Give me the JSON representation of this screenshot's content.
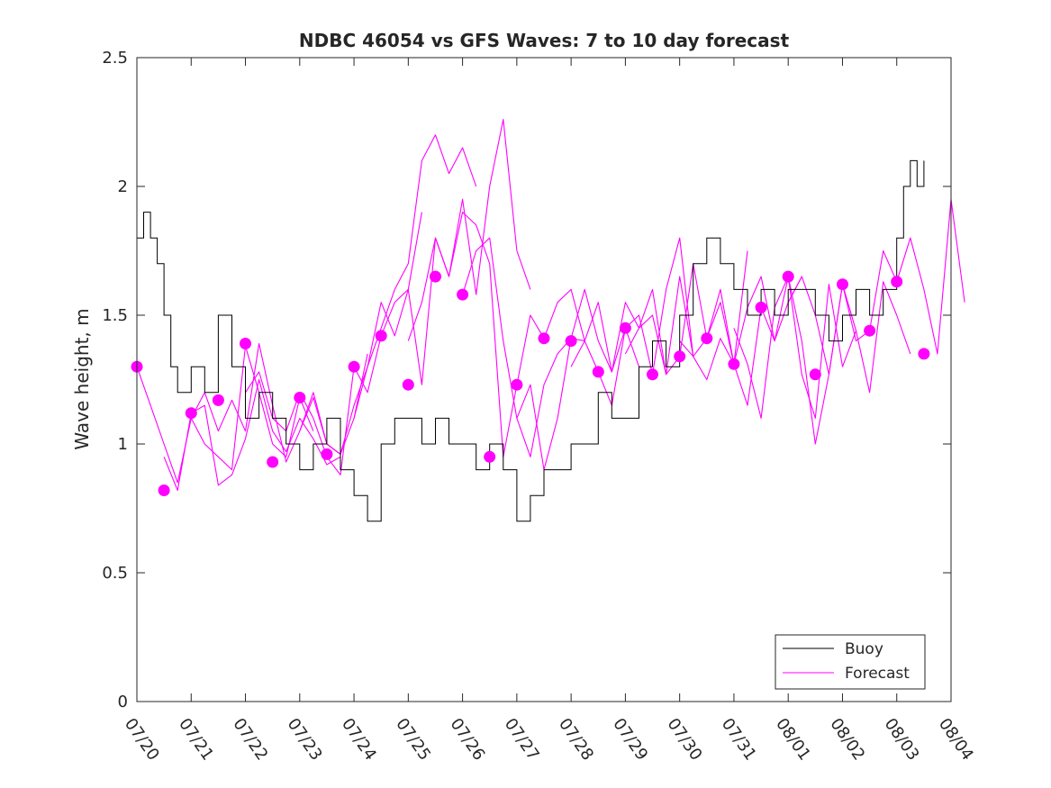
{
  "chart_data": {
    "type": "line",
    "title": "NDBC 46054 vs GFS Waves: 7 to 10 day forecast",
    "xlabel": "",
    "ylabel": "Wave height, m",
    "xlim": [
      "07/20",
      "08/04"
    ],
    "ylim": [
      0,
      2.5
    ],
    "x_ticks": [
      "07/20",
      "07/21",
      "07/22",
      "07/23",
      "07/24",
      "07/25",
      "07/26",
      "07/27",
      "07/28",
      "07/29",
      "07/30",
      "07/31",
      "08/01",
      "08/02",
      "08/03",
      "08/04"
    ],
    "y_ticks": [
      "0",
      "0.5",
      "1",
      "1.5",
      "2",
      "2.5"
    ],
    "legend": {
      "position": "bottom-right",
      "entries": [
        {
          "label": "Buoy",
          "color": "#000000"
        },
        {
          "label": "Forecast",
          "color": "#ff00ff"
        }
      ]
    },
    "colors": {
      "buoy": "#000000",
      "forecast": "#ff00ff",
      "axes": "#262626"
    },
    "series": [
      {
        "name": "Buoy",
        "x": [
          "07/20 00:00",
          "07/20 03:00",
          "07/20 06:00",
          "07/20 09:00",
          "07/20 12:00",
          "07/20 15:00",
          "07/20 18:00",
          "07/21 00:00",
          "07/21 06:00",
          "07/21 12:00",
          "07/21 18:00",
          "07/22 00:00",
          "07/22 06:00",
          "07/22 12:00",
          "07/22 18:00",
          "07/23 00:00",
          "07/23 06:00",
          "07/23 12:00",
          "07/23 18:00",
          "07/24 00:00",
          "07/24 06:00",
          "07/24 12:00",
          "07/24 18:00",
          "07/25 00:00",
          "07/25 06:00",
          "07/25 12:00",
          "07/25 18:00",
          "07/26 00:00",
          "07/26 06:00",
          "07/26 12:00",
          "07/26 18:00",
          "07/27 00:00",
          "07/27 06:00",
          "07/27 12:00",
          "07/27 18:00",
          "07/28 00:00",
          "07/28 06:00",
          "07/28 12:00",
          "07/28 18:00",
          "07/29 00:00",
          "07/29 06:00",
          "07/29 12:00",
          "07/29 18:00",
          "07/30 00:00",
          "07/30 06:00",
          "07/30 12:00",
          "07/30 18:00",
          "07/31 00:00",
          "07/31 06:00",
          "07/31 12:00",
          "07/31 18:00",
          "08/01 00:00",
          "08/01 06:00",
          "08/01 12:00",
          "08/01 18:00",
          "08/02 00:00",
          "08/02 06:00",
          "08/02 12:00",
          "08/02 18:00",
          "08/03 00:00",
          "08/03 03:00",
          "08/03 06:00",
          "08/03 09:00",
          "08/03 12:00"
        ],
        "values": [
          1.8,
          1.9,
          1.8,
          1.7,
          1.5,
          1.3,
          1.2,
          1.3,
          1.2,
          1.5,
          1.3,
          1.1,
          1.2,
          1.1,
          1.0,
          0.9,
          1.0,
          1.1,
          0.9,
          0.8,
          0.7,
          1.0,
          1.1,
          1.1,
          1.0,
          1.1,
          1.0,
          1.0,
          0.9,
          1.0,
          0.9,
          0.7,
          0.8,
          0.9,
          0.9,
          1.0,
          1.0,
          1.2,
          1.1,
          1.1,
          1.3,
          1.4,
          1.3,
          1.5,
          1.7,
          1.8,
          1.7,
          1.6,
          1.5,
          1.6,
          1.5,
          1.6,
          1.6,
          1.5,
          1.4,
          1.5,
          1.6,
          1.5,
          1.6,
          1.8,
          2.0,
          2.1,
          2.0,
          2.1
        ]
      },
      {
        "name": "Forecast",
        "segments": [
          {
            "x": [
              "07/20 00:00",
              "07/20 06:00",
              "07/20 12:00",
              "07/20 18:00",
              "07/21 00:00",
              "07/21 06:00",
              "07/21 12:00",
              "07/21 18:00",
              "07/22 00:00",
              "07/22 06:00",
              "07/22 12:00",
              "07/22 18:00",
              "07/23 00:00",
              "07/23 06:00"
            ],
            "values": [
              1.3,
              1.15,
              1.0,
              0.85,
              1.1,
              1.0,
              0.95,
              0.9,
              1.38,
              1.2,
              1.0,
              0.95,
              1.18,
              1.05
            ]
          },
          {
            "x": [
              "07/20 12:00",
              "07/20 18:00",
              "07/21 00:00",
              "07/21 06:00",
              "07/21 12:00",
              "07/21 18:00",
              "07/22 00:00",
              "07/22 06:00",
              "07/22 12:00",
              "07/22 18:00",
              "07/23 00:00",
              "07/23 06:00",
              "07/23 12:00",
              "07/23 18:00"
            ],
            "values": [
              0.95,
              0.82,
              1.12,
              1.15,
              0.84,
              0.88,
              1.02,
              1.25,
              1.05,
              0.97,
              1.1,
              1.02,
              0.92,
              0.95
            ]
          },
          {
            "x": [
              "07/21 00:00",
              "07/21 06:00",
              "07/21 12:00",
              "07/21 18:00",
              "07/22 00:00",
              "07/22 06:00",
              "07/22 12:00",
              "07/22 18:00",
              "07/23 00:00",
              "07/23 06:00",
              "07/23 12:00",
              "07/23 18:00",
              "07/24 00:00",
              "07/24 06:00"
            ],
            "values": [
              1.1,
              1.2,
              1.05,
              1.17,
              1.05,
              1.39,
              1.15,
              0.93,
              1.05,
              1.2,
              1.0,
              0.96,
              1.1,
              1.35
            ]
          },
          {
            "x": [
              "07/22 00:00",
              "07/22 06:00",
              "07/22 12:00",
              "07/22 18:00",
              "07/23 00:00",
              "07/23 06:00",
              "07/23 12:00",
              "07/23 18:00",
              "07/24 00:00",
              "07/24 06:00",
              "07/24 12:00",
              "07/24 18:00",
              "07/25 00:00",
              "07/25 06:00"
            ],
            "values": [
              1.2,
              1.28,
              1.1,
              1.05,
              1.2,
              1.1,
              0.95,
              0.88,
              1.3,
              1.2,
              1.42,
              1.55,
              1.6,
              1.9
            ]
          },
          {
            "x": [
              "07/23 00:00",
              "07/23 06:00",
              "07/23 12:00",
              "07/23 18:00",
              "07/24 00:00",
              "07/24 06:00",
              "07/24 12:00",
              "07/24 18:00",
              "07/25 00:00",
              "07/25 06:00",
              "07/25 12:00",
              "07/25 18:00",
              "07/26 00:00",
              "07/26 06:00"
            ],
            "values": [
              1.05,
              1.18,
              1.0,
              0.96,
              1.15,
              1.3,
              1.45,
              1.6,
              1.7,
              2.1,
              2.2,
              2.05,
              2.15,
              2.0
            ]
          },
          {
            "x": [
              "07/24 00:00",
              "07/24 06:00",
              "07/24 12:00",
              "07/24 18:00",
              "07/25 00:00",
              "07/25 06:00",
              "07/25 12:00",
              "07/25 18:00",
              "07/26 00:00",
              "07/26 06:00",
              "07/26 12:00",
              "07/26 18:00",
              "07/27 00:00",
              "07/27 06:00"
            ],
            "values": [
              1.1,
              1.3,
              1.55,
              1.42,
              1.6,
              1.23,
              1.8,
              1.65,
              1.95,
              1.58,
              2.0,
              2.26,
              1.75,
              1.6
            ]
          },
          {
            "x": [
              "07/25 00:00",
              "07/25 06:00",
              "07/25 12:00",
              "07/25 18:00",
              "07/26 00:00",
              "07/26 06:00",
              "07/26 12:00",
              "07/26 18:00",
              "07/27 00:00",
              "07/27 06:00",
              "07/27 12:00",
              "07/27 18:00",
              "07/28 00:00",
              "07/28 06:00"
            ],
            "values": [
              1.4,
              1.55,
              1.8,
              1.65,
              1.9,
              1.85,
              1.7,
              0.95,
              1.23,
              1.5,
              1.41,
              1.55,
              1.6,
              1.4
            ]
          },
          {
            "x": [
              "07/26 00:00",
              "07/26 06:00",
              "07/26 12:00",
              "07/26 18:00",
              "07/27 00:00",
              "07/27 06:00",
              "07/27 12:00",
              "07/27 18:00",
              "07/28 00:00",
              "07/28 06:00",
              "07/28 12:00",
              "07/28 18:00",
              "07/29 00:00",
              "07/29 06:00"
            ],
            "values": [
              1.58,
              1.75,
              1.8,
              1.4,
              1.1,
              1.23,
              0.9,
              1.1,
              1.41,
              1.4,
              1.28,
              1.15,
              1.45,
              1.3
            ]
          },
          {
            "x": [
              "07/27 00:00",
              "07/27 06:00",
              "07/27 12:00",
              "07/27 18:00",
              "07/28 00:00",
              "07/28 06:00",
              "07/28 12:00",
              "07/28 18:00",
              "07/29 00:00",
              "07/29 06:00",
              "07/29 12:00",
              "07/29 18:00",
              "07/30 00:00",
              "07/30 06:00"
            ],
            "values": [
              1.1,
              0.95,
              1.23,
              1.35,
              1.41,
              1.6,
              1.4,
              1.28,
              1.55,
              1.45,
              1.5,
              1.27,
              1.65,
              1.34
            ]
          },
          {
            "x": [
              "07/28 00:00",
              "07/28 06:00",
              "07/28 12:00",
              "07/28 18:00",
              "07/29 00:00",
              "07/29 06:00",
              "07/29 12:00",
              "07/29 18:00",
              "07/30 00:00",
              "07/30 06:00",
              "07/30 12:00",
              "07/30 18:00",
              "07/31 00:00",
              "07/31 06:00"
            ],
            "values": [
              1.3,
              1.4,
              1.55,
              1.28,
              1.45,
              1.5,
              1.27,
              1.6,
              1.8,
              1.34,
              1.41,
              1.6,
              1.31,
              1.75
            ]
          },
          {
            "x": [
              "07/29 00:00",
              "07/29 06:00",
              "07/29 12:00",
              "07/29 18:00",
              "07/30 00:00",
              "07/30 06:00",
              "07/30 12:00",
              "07/30 18:00",
              "07/31 00:00",
              "07/31 06:00",
              "07/31 12:00",
              "07/31 18:00",
              "08/01 00:00",
              "08/01 06:00"
            ],
            "values": [
              1.35,
              1.45,
              1.6,
              1.27,
              1.34,
              1.7,
              1.41,
              1.55,
              1.31,
              1.53,
              1.65,
              1.4,
              1.55,
              1.65
            ]
          },
          {
            "x": [
              "07/30 00:00",
              "07/30 06:00",
              "07/30 12:00",
              "07/30 18:00",
              "07/31 00:00",
              "07/31 06:00",
              "07/31 12:00",
              "07/31 18:00",
              "08/01 00:00",
              "08/01 06:00",
              "08/01 12:00",
              "08/01 18:00",
              "08/02 00:00",
              "08/02 06:00"
            ],
            "values": [
              1.4,
              1.34,
              1.25,
              1.41,
              1.31,
              1.15,
              1.53,
              1.4,
              1.65,
              1.27,
              1.1,
              1.62,
              1.3,
              1.44
            ]
          },
          {
            "x": [
              "07/31 00:00",
              "07/31 06:00",
              "07/31 12:00",
              "07/31 18:00",
              "08/01 00:00",
              "08/01 06:00",
              "08/01 12:00",
              "08/01 18:00",
              "08/02 00:00",
              "08/02 06:00",
              "08/02 12:00",
              "08/02 18:00",
              "08/03 00:00",
              "08/03 06:00"
            ],
            "values": [
              1.45,
              1.31,
              1.1,
              1.53,
              1.65,
              1.4,
              1.0,
              1.27,
              1.62,
              1.44,
              1.2,
              1.63,
              1.5,
              1.35
            ]
          },
          {
            "x": [
              "08/01 00:00",
              "08/01 06:00",
              "08/01 12:00",
              "08/01 18:00",
              "08/02 00:00",
              "08/02 06:00",
              "08/02 12:00",
              "08/02 18:00",
              "08/03 00:00",
              "08/03 06:00",
              "08/03 12:00",
              "08/03 18:00",
              "08/04 00:00",
              "08/04 06:00"
            ],
            "values": [
              1.55,
              1.65,
              1.5,
              1.27,
              1.62,
              1.4,
              1.44,
              1.75,
              1.63,
              1.8,
              1.6,
              1.35,
              1.95,
              1.55
            ]
          }
        ],
        "markers": {
          "x": [
            "07/20 00:00",
            "07/20 12:00",
            "07/21 00:00",
            "07/21 12:00",
            "07/22 00:00",
            "07/22 12:00",
            "07/23 00:00",
            "07/23 12:00",
            "07/24 00:00",
            "07/24 12:00",
            "07/25 00:00",
            "07/25 12:00",
            "07/26 00:00",
            "07/26 12:00",
            "07/27 00:00",
            "07/27 12:00",
            "07/28 00:00",
            "07/28 12:00",
            "07/29 00:00",
            "07/29 12:00",
            "07/30 00:00",
            "07/30 12:00",
            "07/31 00:00",
            "07/31 12:00",
            "08/01 00:00",
            "08/01 12:00",
            "08/02 00:00",
            "08/02 12:00",
            "08/03 00:00",
            "08/03 12:00"
          ],
          "values": [
            1.3,
            0.82,
            1.12,
            1.17,
            1.39,
            0.93,
            1.18,
            0.96,
            1.3,
            1.42,
            1.23,
            1.65,
            1.58,
            0.95,
            1.23,
            1.41,
            1.4,
            1.28,
            1.45,
            1.27,
            1.34,
            1.41,
            1.31,
            1.53,
            1.65,
            1.27,
            1.62,
            1.44,
            1.63,
            1.35
          ]
        }
      }
    ]
  }
}
